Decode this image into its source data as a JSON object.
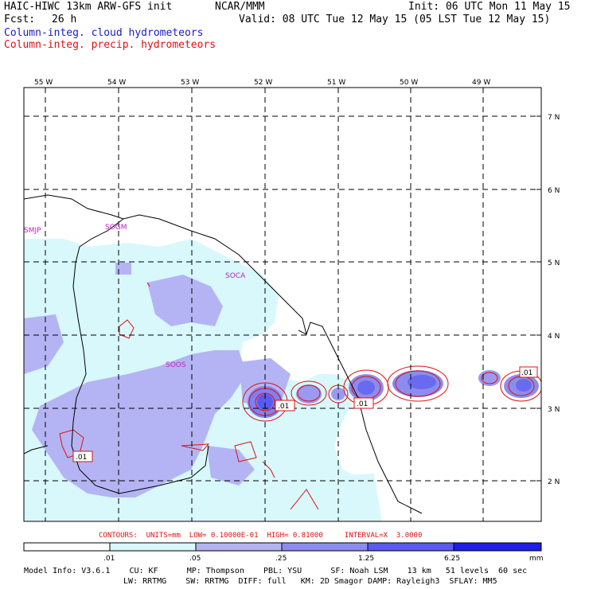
{
  "header": {
    "title": "HAIC-HIWC 13km ARW-GFS init",
    "org": "NCAR/MMM",
    "init": "Init: 06 UTC Mon 11 May 15",
    "fcst_label": "Fcst:",
    "fcst_value": "26 h",
    "valid": "Valid: 08 UTC Tue 12 May 15 (05 LST Tue 12 May 15)",
    "field1": "Column-integ. cloud hydrometeors",
    "field2": "Column-integ. precip. hydrometeors"
  },
  "map": {
    "lon_labels": [
      "55 W",
      "54 W",
      "53 W",
      "52 W",
      "51 W",
      "50 W",
      "49 W"
    ],
    "lat_labels": [
      "7 N",
      "6 N",
      "5 N",
      "4 N",
      "3 N",
      "2 N"
    ],
    "stations": [
      "SMJP",
      "SOGM",
      "SOCA",
      "SOOS"
    ],
    "contour_labels": [
      ".01",
      ".01",
      ".01",
      ".01"
    ]
  },
  "contours_line": "CONTOURS:  UNITS=mm  LOW= 0.10000E-01  HIGH= 0.81000     INTERVAL=X  3.0000",
  "colorbar": {
    "ticks": [
      ".01",
      ".05",
      ".25",
      "1.25",
      "6.25"
    ],
    "units": "mm",
    "colors": [
      "#ffffff",
      "#d8f8fc",
      "#b4b4f4",
      "#8c8cf0",
      "#5a5af0",
      "#1e1ee6"
    ]
  },
  "model_info": {
    "line1": "Model Info: V3.6.1    CU: KF      MP: Thompson    PBL: YSU      SF: Noah LSM    13 km   51 levels  60 sec",
    "line2": "LW: RRTMG    SW: RRTMG  DIFF: full   KM: 2D Smagor DAMP: Rayleigh3  SFLAY: MM5"
  },
  "colors": {
    "cloud_light": "#d8f8fc",
    "cloud_mid": "#b4b4f4",
    "precip_core": "#8080f0",
    "precip_line": "#e01010",
    "station": "#c020c0"
  }
}
